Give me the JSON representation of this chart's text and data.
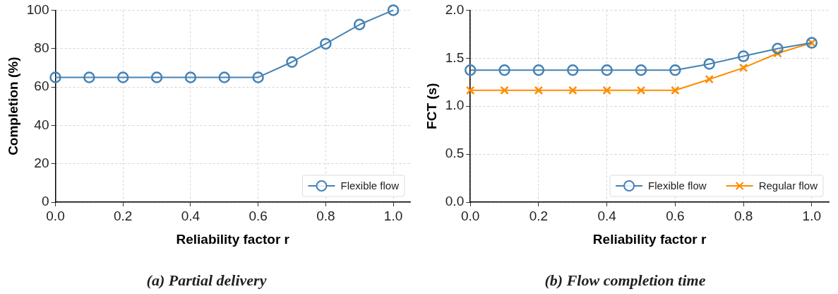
{
  "chart_data": [
    {
      "type": "line",
      "title": "(a) Partial delivery",
      "xlabel": "Reliability factor r",
      "ylabel": "Completion (%)",
      "x": [
        0,
        0.1,
        0.2,
        0.3,
        0.4,
        0.5,
        0.6,
        0.7,
        0.8,
        0.9,
        1.0
      ],
      "series": [
        {
          "name": "Flexible flow",
          "color": "#4682b4",
          "marker": "circle",
          "values": [
            65,
            65,
            65,
            65,
            65,
            65,
            65,
            73,
            82.5,
            92.5,
            100
          ]
        }
      ],
      "xlim": [
        0,
        1.05
      ],
      "xticks": [
        {
          "value": 0,
          "label": "0.0"
        },
        {
          "value": 0.2,
          "label": "0.2"
        },
        {
          "value": 0.4,
          "label": "0.4"
        },
        {
          "value": 0.6,
          "label": "0.6"
        },
        {
          "value": 0.8,
          "label": "0.8"
        },
        {
          "value": 1.0,
          "label": "1.0"
        }
      ],
      "ylim": [
        0,
        100
      ],
      "yticks": [
        0,
        20,
        40,
        60,
        80,
        100
      ],
      "grid": true,
      "legend": "bottom right",
      "line_style": "solid"
    },
    {
      "type": "line",
      "title": "(b) Flow completion time",
      "xlabel": "Reliability factor r",
      "ylabel": "FCT (s)",
      "x": [
        0,
        0.1,
        0.2,
        0.3,
        0.4,
        0.5,
        0.6,
        0.7,
        0.8,
        0.9,
        1.0
      ],
      "series": [
        {
          "name": "Flexible flow",
          "color": "#4682b4",
          "marker": "circle",
          "values": [
            1.375,
            1.375,
            1.375,
            1.375,
            1.375,
            1.375,
            1.375,
            1.44,
            1.52,
            1.6,
            1.66
          ]
        },
        {
          "name": "Regular flow",
          "color": "#ff8c00",
          "marker": "cross",
          "values": [
            1.165,
            1.165,
            1.165,
            1.165,
            1.165,
            1.165,
            1.165,
            1.28,
            1.4,
            1.55,
            1.66
          ]
        }
      ],
      "xlim": [
        0,
        1.05
      ],
      "xticks": [
        {
          "value": 0,
          "label": "0.0"
        },
        {
          "value": 0.2,
          "label": "0.2"
        },
        {
          "value": 0.4,
          "label": "0.4"
        },
        {
          "value": 0.6,
          "label": "0.6"
        },
        {
          "value": 0.8,
          "label": "0.8"
        },
        {
          "value": 1.0,
          "label": "1.0"
        }
      ],
      "ylim": [
        0,
        2.0
      ],
      "yticks": [
        {
          "value": 0,
          "label": "0.0"
        },
        {
          "value": 0.5,
          "label": "0.5"
        },
        {
          "value": 1.0,
          "label": "1.0"
        },
        {
          "value": 1.5,
          "label": "1.5"
        },
        {
          "value": 2.0,
          "label": "2.0"
        }
      ],
      "grid": true,
      "legend": "bottom right",
      "line_style": "solid"
    }
  ]
}
